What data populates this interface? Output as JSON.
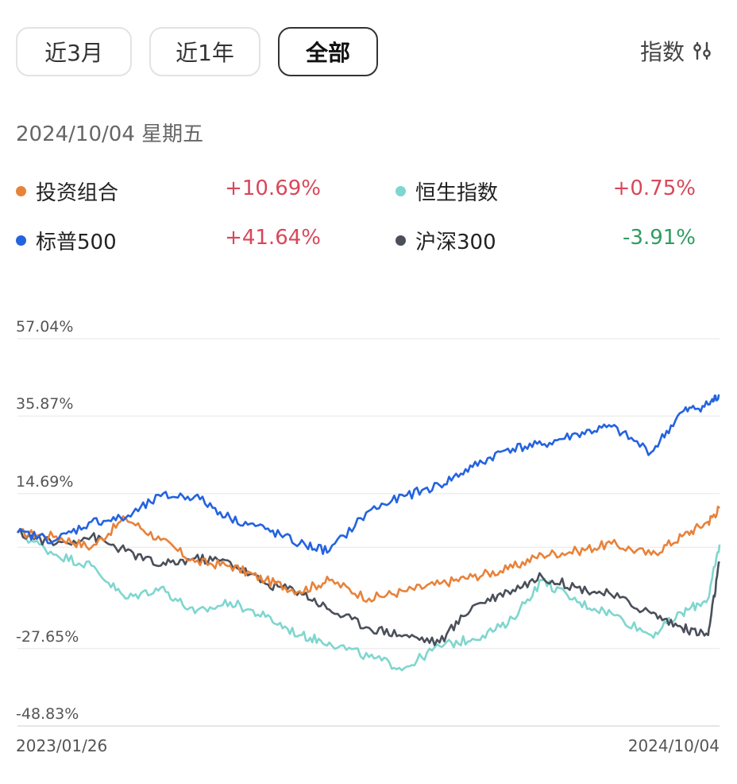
{
  "tabs": [
    {
      "label": "近3月"
    },
    {
      "label": "近1年"
    },
    {
      "label": "全部"
    }
  ],
  "index_button": {
    "label": "指数",
    "icon": "sliders-icon"
  },
  "date_label": "2024/10/04 星期五",
  "legend": [
    {
      "name": "投资组合",
      "value": "+10.69%",
      "color": "#e8823a"
    },
    {
      "name": "恒生指数",
      "value": "+0.75%",
      "color": "#7fd6cf"
    },
    {
      "name": "标普500",
      "value": "+41.64%",
      "color": "#2463e0"
    },
    {
      "name": "沪深300",
      "value": "-3.91%",
      "color": "#4a4f5a"
    }
  ],
  "chart_data": {
    "type": "line",
    "x_start": "2023/01/26",
    "x_end": "2024/10/04",
    "y_ticks": [
      "57.04%",
      "35.87%",
      "14.69%",
      "-27.65%",
      "-48.83%"
    ],
    "ylim": [
      -48.83,
      57.04
    ],
    "x": [
      "2023-01-26",
      "2023-03-01",
      "2023-04-01",
      "2023-05-01",
      "2023-06-01",
      "2023-07-01",
      "2023-08-01",
      "2023-09-01",
      "2023-10-01",
      "2023-10-27",
      "2023-12-01",
      "2024-01-01",
      "2024-02-01",
      "2024-03-01",
      "2024-04-01",
      "2024-05-01",
      "2024-06-01",
      "2024-07-01",
      "2024-08-05",
      "2024-09-01",
      "2024-09-24",
      "2024-10-04"
    ],
    "series": [
      {
        "name": "投资组合",
        "color": "#e8823a",
        "values": [
          4,
          3,
          0,
          8,
          2,
          -4,
          -5,
          -9,
          -12,
          -9,
          -14,
          -12,
          -10,
          -8,
          -6,
          -2,
          -1,
          1,
          -2,
          3,
          7,
          10.69
        ]
      },
      {
        "name": "恒生指数",
        "color": "#7fd6cf",
        "values": [
          4,
          -2,
          -5,
          -14,
          -11,
          -18,
          -15,
          -19,
          -24,
          -26,
          -30,
          -33,
          -27,
          -25,
          -21,
          -9,
          -15,
          -18,
          -24,
          -18,
          -14,
          0.75
        ]
      },
      {
        "name": "标普500",
        "color": "#2463e0",
        "values": [
          4,
          2,
          7,
          8,
          14,
          14,
          8,
          5,
          1,
          -1,
          10,
          14,
          17,
          22,
          27,
          28,
          31,
          33,
          26,
          37,
          39,
          41.64
        ]
      },
      {
        "name": "沪深300",
        "color": "#4a4f5a",
        "values": [
          4,
          1,
          3,
          -1,
          -5,
          -3,
          -4,
          -10,
          -12,
          -17,
          -22,
          -24,
          -26,
          -16,
          -12,
          -8,
          -11,
          -13,
          -18,
          -22,
          -24,
          -3.91
        ]
      }
    ]
  }
}
